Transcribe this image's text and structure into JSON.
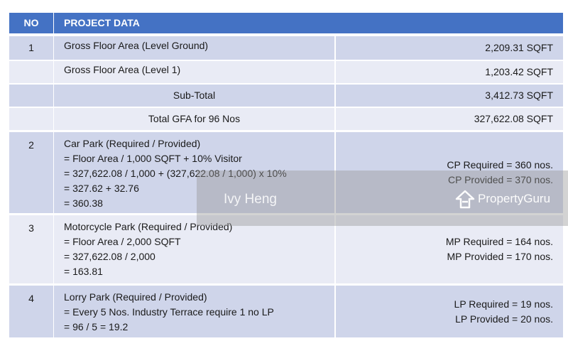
{
  "table": {
    "header": [
      "NO",
      "PROJECT DATA"
    ],
    "rows": [
      {
        "no": "1",
        "left": [
          "Gross Floor Area (Level Ground)"
        ],
        "right": [
          "2,209.31 SQFT"
        ]
      },
      {
        "left": [
          "Gross Floor Area (Level 1)"
        ],
        "right": [
          "1,203.42 SQFT"
        ]
      },
      {
        "left": [
          "Sub-Total"
        ],
        "right": [
          "3,412.73 SQFT"
        ]
      },
      {
        "left": [
          "Total GFA for 96 Nos"
        ],
        "right": [
          "327,622.08 SQFT"
        ]
      },
      {
        "no": "2",
        "left": [
          "Car Park (Required / Provided)",
          "= Floor Area / 1,000 SQFT  +  10% Visitor",
          "= 327,622.08 / 1,000  +  (327,622.08 / 1,000) x 10%",
          "= 327.62 + 32.76",
          "= 360.38"
        ],
        "right": [
          "CP Required =  360 nos.",
          "CP Provided = 370 nos."
        ]
      },
      {
        "no": "3",
        "left": [
          "Motorcycle Park (Required / Provided)",
          "= Floor Area / 2,000 SQFT",
          "= 327,622.08 / 2,000",
          "= 163.81"
        ],
        "right": [
          "MP Required = 164 nos.",
          "MP Provided = 170 nos."
        ]
      },
      {
        "no": "4",
        "left": [
          "Lorry Park (Required / Provided)",
          "= Every 5 Nos. Industry Terrace require 1 no LP",
          "= 96 / 5  =  19.2"
        ],
        "right": [
          "LP Required = 19 nos.",
          "LP Provided = 20 nos."
        ]
      }
    ]
  },
  "watermark": {
    "name": "Ivy Heng",
    "brand": "PropertyGuru"
  }
}
